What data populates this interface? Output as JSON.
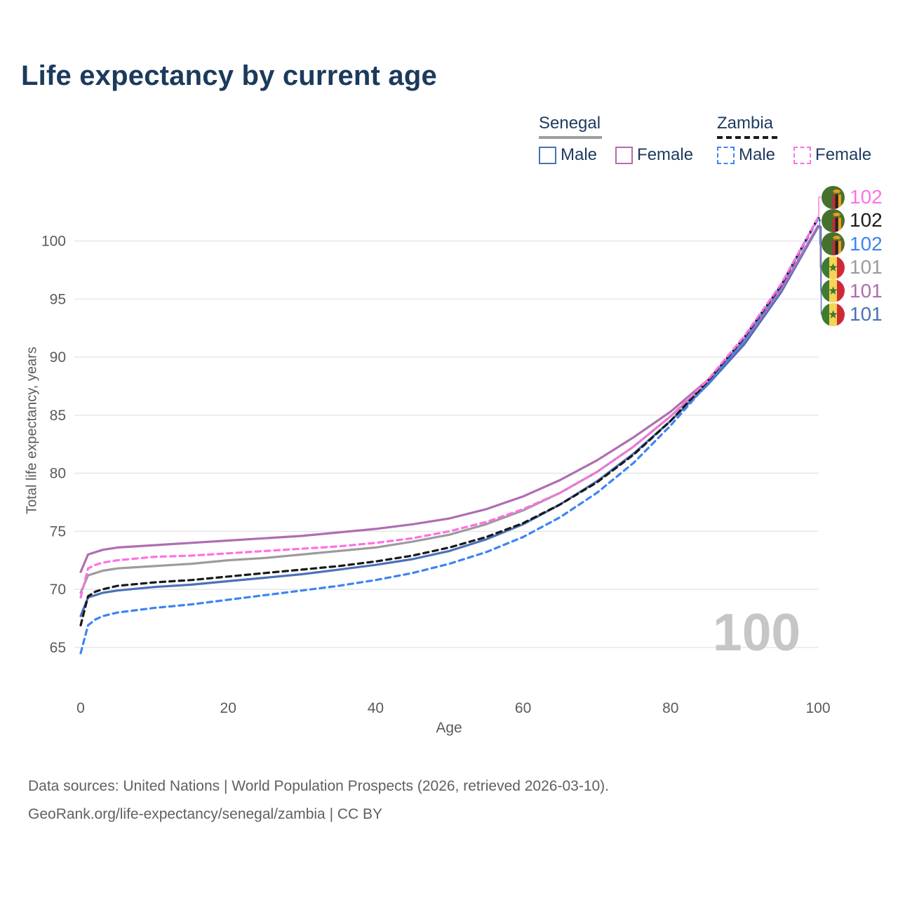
{
  "title": "Life expectancy by current age",
  "watermark": "100",
  "legend": {
    "groups": [
      {
        "label": "Senegal",
        "style": "solid",
        "underline_color": "#9e9e9e",
        "items": [
          {
            "label": "Male",
            "color": "#4C70B8"
          },
          {
            "label": "Female",
            "color": "#B06DB1"
          }
        ]
      },
      {
        "label": "Zambia",
        "style": "dashed",
        "underline_color": "#1a1a1a",
        "items": [
          {
            "label": "Male",
            "color": "#3D85F2"
          },
          {
            "label": "Female",
            "color": "#FF70E5"
          }
        ]
      }
    ]
  },
  "footer": {
    "line1": "Data sources: United Nations | World Population Prospects (2026, retrieved 2026-03-10).",
    "line2": "GeoRank.org/life-expectancy/senegal/zambia | CC BY"
  },
  "chart_data": {
    "type": "line",
    "title": "Life expectancy by current age",
    "xlabel": "Age",
    "ylabel": "Total life expectancy, years",
    "x_ticks": [
      0,
      20,
      40,
      60,
      80,
      100
    ],
    "y_ticks": [
      65,
      70,
      75,
      80,
      85,
      90,
      95,
      100
    ],
    "xlim": [
      0,
      100
    ],
    "ylim": [
      64,
      103
    ],
    "grid": "horizontal-only",
    "legend_position": "top-right",
    "x": [
      0,
      1,
      2,
      3,
      5,
      10,
      15,
      20,
      25,
      30,
      35,
      40,
      45,
      50,
      55,
      60,
      65,
      70,
      75,
      80,
      85,
      90,
      95,
      100
    ],
    "series": [
      {
        "name": "Senegal Total",
        "country": "Senegal",
        "sex": "Both",
        "color": "#9C9C9C",
        "dash": "solid",
        "values": [
          69.7,
          71.2,
          71.4,
          71.6,
          71.8,
          72.0,
          72.2,
          72.5,
          72.7,
          73.0,
          73.3,
          73.6,
          74.1,
          74.7,
          75.6,
          76.8,
          78.3,
          80.1,
          82.3,
          84.9,
          87.8,
          91.2,
          95.7,
          101.2
        ]
      },
      {
        "name": "Senegal Male",
        "country": "Senegal",
        "sex": "Male",
        "color": "#4C70B8",
        "dash": "solid",
        "values": [
          67.7,
          69.3,
          69.5,
          69.7,
          69.9,
          70.2,
          70.4,
          70.7,
          71.0,
          71.3,
          71.7,
          72.1,
          72.6,
          73.3,
          74.3,
          75.6,
          77.3,
          79.3,
          81.7,
          84.5,
          87.6,
          91.1,
          95.6,
          101.2
        ]
      },
      {
        "name": "Senegal Female",
        "country": "Senegal",
        "sex": "Female",
        "color": "#B06DB1",
        "dash": "solid",
        "values": [
          71.5,
          73.0,
          73.2,
          73.4,
          73.6,
          73.8,
          74.0,
          74.2,
          74.4,
          74.6,
          74.9,
          75.2,
          75.6,
          76.1,
          76.9,
          78.0,
          79.4,
          81.1,
          83.1,
          85.3,
          88.0,
          91.4,
          95.8,
          101.3
        ]
      },
      {
        "name": "Zambia Male",
        "country": "Zambia",
        "sex": "Male",
        "color": "#3D85F2",
        "dash": "dashed",
        "values": [
          64.5,
          66.9,
          67.4,
          67.7,
          68.0,
          68.4,
          68.7,
          69.1,
          69.5,
          69.9,
          70.3,
          70.8,
          71.4,
          72.2,
          73.2,
          74.5,
          76.2,
          78.3,
          80.9,
          84.1,
          87.7,
          91.5,
          96.1,
          101.9
        ]
      },
      {
        "name": "Zambia Total",
        "country": "Zambia",
        "sex": "Both",
        "color": "#191919",
        "dash": "dashed",
        "values": [
          66.9,
          69.4,
          69.8,
          70.0,
          70.3,
          70.6,
          70.8,
          71.1,
          71.4,
          71.7,
          72.0,
          72.4,
          72.9,
          73.6,
          74.5,
          75.7,
          77.3,
          79.2,
          81.6,
          84.5,
          87.9,
          91.7,
          96.2,
          102.0
        ]
      },
      {
        "name": "Zambia Female",
        "country": "Zambia",
        "sex": "Female",
        "color": "#FF70E5",
        "dash": "dashed",
        "values": [
          69.3,
          71.8,
          72.1,
          72.3,
          72.5,
          72.8,
          72.9,
          73.1,
          73.3,
          73.5,
          73.7,
          74.0,
          74.4,
          75.0,
          75.8,
          76.9,
          78.3,
          80.1,
          82.3,
          84.9,
          88.0,
          91.8,
          96.3,
          102.0
        ]
      }
    ],
    "end_labels": [
      {
        "value": "102",
        "color": "#FF70E5",
        "flag": "zambia",
        "series": "Zambia Female"
      },
      {
        "value": "102",
        "color": "#1c1c1c",
        "flag": "zambia",
        "series": "Zambia Total"
      },
      {
        "value": "102",
        "color": "#3D85F2",
        "flag": "zambia",
        "series": "Zambia Male"
      },
      {
        "value": "101",
        "color": "#9b9b9b",
        "flag": "senegal",
        "series": "Senegal Total"
      },
      {
        "value": "101",
        "color": "#AF6DAE",
        "flag": "senegal",
        "series": "Senegal Female"
      },
      {
        "value": "101",
        "color": "#4C70B8",
        "flag": "senegal",
        "series": "Senegal Male"
      }
    ]
  }
}
